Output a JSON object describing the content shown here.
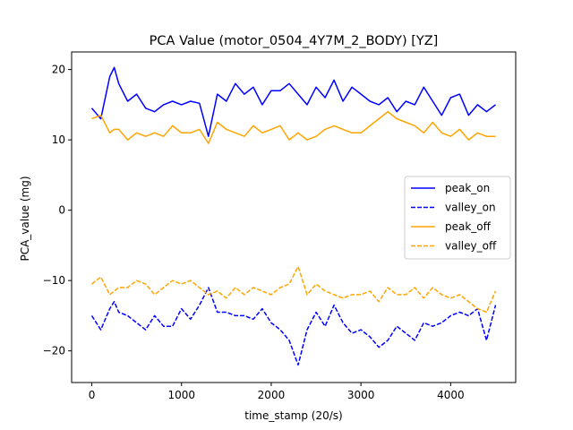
{
  "chart_data": {
    "type": "line",
    "title": "PCA Value (motor_0504_4Y7M_2_BODY) [YZ]",
    "xlabel": "time_stamp (20/s)",
    "ylabel": "PCA_value (mg)",
    "xlim": [
      -225,
      4725
    ],
    "ylim": [
      -24.5,
      22.5
    ],
    "xticks": [
      0,
      1000,
      2000,
      3000,
      4000
    ],
    "xtick_labels": [
      "0",
      "1000",
      "2000",
      "3000",
      "4000"
    ],
    "yticks": [
      -20,
      -10,
      0,
      10,
      20
    ],
    "ytick_labels": [
      "−20",
      "−10",
      "0",
      "10",
      "20"
    ],
    "grid": false,
    "legend_position": "center-right",
    "x": [
      0,
      100,
      200,
      250,
      300,
      400,
      500,
      600,
      700,
      800,
      900,
      1000,
      1100,
      1200,
      1300,
      1400,
      1500,
      1600,
      1700,
      1800,
      1900,
      2000,
      2100,
      2200,
      2300,
      2400,
      2500,
      2600,
      2700,
      2800,
      2900,
      3000,
      3100,
      3200,
      3300,
      3400,
      3500,
      3600,
      3700,
      3800,
      3900,
      4000,
      4100,
      4200,
      4300,
      4400,
      4500
    ],
    "series": [
      {
        "name": "peak_on",
        "color": "#0000ff",
        "dash": "solid",
        "values": [
          14.5,
          13.0,
          19.0,
          20.3,
          18.0,
          15.5,
          16.5,
          14.5,
          14.0,
          15.0,
          15.5,
          15.0,
          15.5,
          15.2,
          10.5,
          16.5,
          15.5,
          18.0,
          16.5,
          17.5,
          15.0,
          17.0,
          17.0,
          18.0,
          16.5,
          15.0,
          17.5,
          16.0,
          18.5,
          15.5,
          17.5,
          16.5,
          15.5,
          15.0,
          16.0,
          14.0,
          15.5,
          15.0,
          17.5,
          15.5,
          13.5,
          16.0,
          16.5,
          13.5,
          15.0,
          14.0,
          15.0
        ]
      },
      {
        "name": "valley_on",
        "color": "#0000ff",
        "dash": "dashed",
        "values": [
          -15.0,
          -17.0,
          -14.0,
          -13.0,
          -14.5,
          -15.0,
          -16.0,
          -17.0,
          -15.0,
          -16.5,
          -16.5,
          -14.0,
          -15.5,
          -13.5,
          -11.0,
          -14.5,
          -14.5,
          -15.0,
          -15.0,
          -15.5,
          -14.0,
          -16.0,
          -17.0,
          -18.5,
          -22.0,
          -17.0,
          -14.5,
          -16.5,
          -13.5,
          -16.0,
          -17.5,
          -17.0,
          -18.0,
          -19.5,
          -18.5,
          -16.5,
          -17.5,
          -18.5,
          -16.0,
          -16.5,
          -16.0,
          -15.0,
          -14.5,
          -15.0,
          -14.0,
          -18.5,
          -13.5
        ]
      },
      {
        "name": "peak_off",
        "color": "#ffa500",
        "dash": "solid",
        "values": [
          13.0,
          13.5,
          11.0,
          11.5,
          11.5,
          10.0,
          11.0,
          10.5,
          11.0,
          10.5,
          12.0,
          11.0,
          11.0,
          11.5,
          9.5,
          12.5,
          11.5,
          11.0,
          10.5,
          12.0,
          11.0,
          11.5,
          12.0,
          10.0,
          11.0,
          10.0,
          10.5,
          11.5,
          12.0,
          11.5,
          11.0,
          11.0,
          12.0,
          13.0,
          14.0,
          13.0,
          12.5,
          12.0,
          11.0,
          12.5,
          11.0,
          10.5,
          11.5,
          10.0,
          11.0,
          10.5,
          10.5
        ]
      },
      {
        "name": "valley_off",
        "color": "#ffa500",
        "dash": "dashed",
        "values": [
          -10.5,
          -9.5,
          -12.0,
          -11.5,
          -11.0,
          -11.0,
          -10.0,
          -10.5,
          -12.0,
          -11.0,
          -10.0,
          -10.5,
          -10.0,
          -11.0,
          -12.0,
          -11.5,
          -12.5,
          -11.0,
          -12.0,
          -11.0,
          -11.5,
          -12.0,
          -11.0,
          -10.5,
          -8.0,
          -12.0,
          -10.5,
          -11.5,
          -12.0,
          -12.5,
          -12.0,
          -12.0,
          -11.5,
          -13.0,
          -11.0,
          -12.0,
          -12.0,
          -11.0,
          -12.5,
          -11.0,
          -12.0,
          -12.5,
          -12.0,
          -13.0,
          -14.0,
          -14.5,
          -11.5
        ]
      }
    ]
  }
}
